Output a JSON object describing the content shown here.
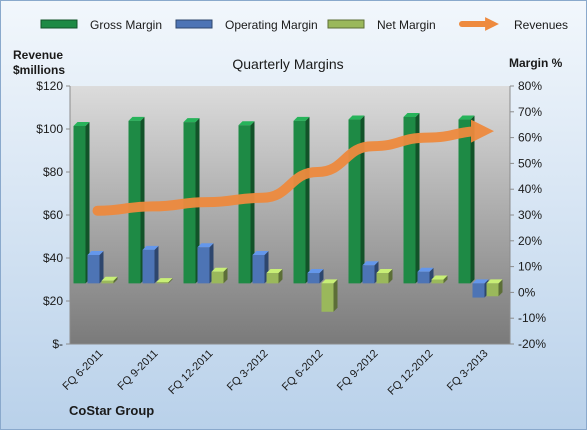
{
  "chart_data": {
    "type": "bar",
    "title": "Quarterly Margins",
    "footer_label": "CoStar Group",
    "left_axis_label_line1": "Revenue",
    "left_axis_label_line2": "$millions",
    "right_axis_label": "Margin %",
    "categories": [
      "FQ 6-2011",
      "FQ 9-2011",
      "FQ 12-2011",
      "FQ 3-2012",
      "FQ 6-2012",
      "FQ 9-2012",
      "FQ 12-2012",
      "FQ 3-2013"
    ],
    "series": [
      {
        "name": "Gross Margin",
        "axis": "right",
        "kind": "bar",
        "color": "#1e8a45",
        "values": [
          64.5,
          66.5,
          66.0,
          64.8,
          66.5,
          67.0,
          68.0,
          67.0
        ]
      },
      {
        "name": "Operating Margin",
        "axis": "right",
        "kind": "bar",
        "color": "#4d74b5",
        "values": [
          14.5,
          16.5,
          17.5,
          14.5,
          7.5,
          10.5,
          8.0,
          -2.0
        ]
      },
      {
        "name": "Net Margin",
        "axis": "right",
        "kind": "bar",
        "color": "#9ab85b",
        "values": [
          4.5,
          4.0,
          8.0,
          7.5,
          -7.5,
          7.5,
          5.0,
          -1.5
        ]
      },
      {
        "name": "Revenues",
        "axis": "left",
        "kind": "line",
        "color": "#ee8a3e",
        "values": [
          62,
          64,
          66,
          68,
          80,
          92,
          96,
          99
        ]
      }
    ],
    "left_axis": {
      "ylim": [
        0,
        120
      ],
      "ticks": [
        "$-",
        "$20",
        "$40",
        "$60",
        "$80",
        "$100",
        "$120"
      ]
    },
    "right_axis": {
      "ylim": [
        -20,
        80
      ],
      "ticks": [
        "-20%",
        "-10%",
        "0%",
        "10%",
        "20%",
        "30%",
        "40%",
        "50%",
        "60%",
        "70%",
        "80%"
      ]
    },
    "legend_position": "top",
    "grid": false
  }
}
